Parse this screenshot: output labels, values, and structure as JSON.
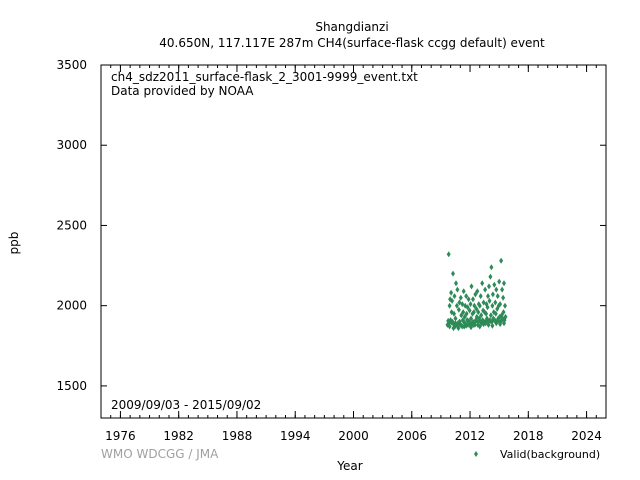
{
  "chart_data": {
    "type": "scatter",
    "title": "Shangdianzi",
    "subtitle": "40.650N, 117.117E 287m    CH4(surface-flask ccgg default) event",
    "xlabel": "Year",
    "ylabel": "ppb",
    "xlim": [
      1974,
      2026
    ],
    "ylim": [
      1300,
      3500
    ],
    "x_ticks": [
      "1976",
      "1982",
      "1988",
      "1994",
      "2000",
      "2006",
      "2012",
      "2018",
      "2024"
    ],
    "y_ticks": [
      "1500",
      "2000",
      "2500",
      "3000",
      "3500"
    ],
    "grid": false,
    "legend_position": "bottom-right",
    "annotations": {
      "file": "ch4_sdz2011_surface-flask_2_3001-9999_event.txt",
      "provider": "Data provided by NOAA",
      "period": "2009/09/03 - 2015/09/02"
    },
    "credit": "WMO WDCGG / JMA",
    "series": [
      {
        "name": "Valid(background)",
        "color": "#2e8b57",
        "x": [
          2009.68,
          2009.75,
          2009.8,
          2009.85,
          2009.9,
          2009.95,
          2010.0,
          2010.05,
          2010.1,
          2010.15,
          2010.2,
          2010.25,
          2010.3,
          2010.35,
          2010.4,
          2010.45,
          2010.5,
          2010.55,
          2010.6,
          2010.65,
          2010.7,
          2010.75,
          2010.8,
          2010.85,
          2010.9,
          2010.95,
          2011.0,
          2011.05,
          2011.1,
          2011.15,
          2011.2,
          2011.25,
          2011.3,
          2011.35,
          2011.4,
          2011.45,
          2011.5,
          2011.55,
          2011.6,
          2011.65,
          2011.7,
          2011.75,
          2011.8,
          2011.85,
          2011.9,
          2011.95,
          2012.0,
          2012.05,
          2012.1,
          2012.15,
          2012.2,
          2012.25,
          2012.3,
          2012.35,
          2012.4,
          2012.45,
          2012.5,
          2012.55,
          2012.6,
          2012.65,
          2012.7,
          2012.75,
          2012.8,
          2012.85,
          2012.9,
          2012.95,
          2013.0,
          2013.05,
          2013.1,
          2013.15,
          2013.2,
          2013.25,
          2013.3,
          2013.35,
          2013.4,
          2013.45,
          2013.5,
          2013.55,
          2013.6,
          2013.65,
          2013.7,
          2013.75,
          2013.8,
          2013.85,
          2013.9,
          2013.95,
          2014.0,
          2014.05,
          2014.1,
          2014.15,
          2014.2,
          2014.25,
          2014.3,
          2014.35,
          2014.4,
          2014.45,
          2014.5,
          2014.55,
          2014.6,
          2014.65,
          2014.7,
          2014.75,
          2014.8,
          2014.85,
          2014.9,
          2014.95,
          2015.0,
          2015.05,
          2015.1,
          2015.15,
          2015.2,
          2015.25,
          2015.3,
          2015.35,
          2015.4,
          2015.45,
          2015.5,
          2015.55,
          2015.6,
          2015.65,
          2009.9,
          2010.3,
          2010.7,
          2011.2,
          2011.6,
          2012.1,
          2012.5,
          2013.0,
          2013.4,
          2013.9,
          2014.3,
          2014.7,
          2015.1,
          2015.5,
          2010.1,
          2010.5,
          2010.9,
          2011.4,
          2011.8,
          2012.3,
          2012.8,
          2013.2,
          2013.7,
          2014.1,
          2014.5,
          2014.9,
          2015.3
        ],
        "y": [
          1880,
          1905,
          2320,
          1890,
          2000,
          2040,
          1910,
          2080,
          1960,
          2030,
          1900,
          2200,
          1885,
          1950,
          2060,
          1870,
          1920,
          2140,
          1880,
          2000,
          2100,
          1890,
          1860,
          1975,
          2020,
          1900,
          1880,
          2050,
          1940,
          1875,
          2010,
          1910,
          1960,
          2090,
          1870,
          1930,
          2000,
          1885,
          2060,
          1950,
          1910,
          1990,
          1880,
          2040,
          1900,
          1970,
          1880,
          2010,
          1920,
          2120,
          1890,
          1950,
          2040,
          1880,
          1960,
          2000,
          1900,
          2070,
          1910,
          1980,
          1930,
          2090,
          1880,
          1960,
          2010,
          1920,
          2000,
          1900,
          2060,
          1940,
          1890,
          2140,
          1910,
          1970,
          2020,
          1900,
          1960,
          2100,
          1890,
          1950,
          2010,
          1920,
          1990,
          2060,
          1900,
          2120,
          2030,
          1910,
          2180,
          1940,
          2240,
          1900,
          2000,
          2070,
          1920,
          1960,
          2130,
          1910,
          2020,
          1950,
          2100,
          1900,
          1980,
          2060,
          1920,
          2000,
          2150,
          1930,
          2010,
          1900,
          2280,
          1940,
          2100,
          1920,
          2050,
          1960,
          2140,
          1910,
          2000,
          1930,
          1870,
          1860,
          1880,
          1870,
          1875,
          1865,
          1880,
          1870,
          1885,
          1880,
          1875,
          1890,
          1885,
          1890,
          1895,
          1890,
          1900,
          1895,
          1905,
          1900,
          1898,
          1902,
          1908,
          1904,
          1910,
          1906,
          1912
        ]
      }
    ]
  }
}
